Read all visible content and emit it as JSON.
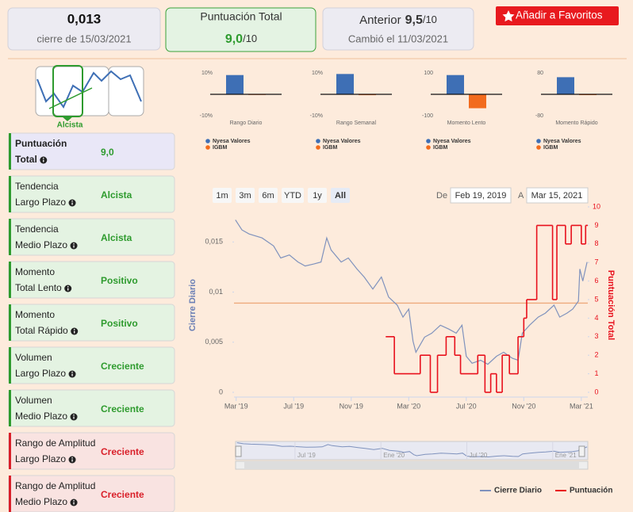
{
  "header": {
    "price": "0,013",
    "price_caption": "cierre de 15/03/2021",
    "score_title": "Puntuación Total",
    "score": "9,0",
    "score_scale": "/10",
    "previous_label": "Anterior",
    "previous_score": "9,5",
    "previous_scale": "/10",
    "previous_caption": "Cambió el 11/03/2021",
    "favorite_button": "Añadir a Favoritos"
  },
  "trend_icon": {
    "label": "Alcista"
  },
  "indicators": [
    {
      "label": [
        "Puntuación",
        "Total"
      ],
      "value": "9,0",
      "color": "#2e9b2e",
      "background": "#e9e7f7",
      "border": "#2e9b2e"
    },
    {
      "label": [
        "Tendencia",
        "Largo Plazo"
      ],
      "value": "Alcista",
      "color": "#2e9b2e",
      "background": "#e4f3e2",
      "border": "#2e9b2e"
    },
    {
      "label": [
        "Tendencia",
        "Medio Plazo"
      ],
      "value": "Alcista",
      "color": "#2e9b2e",
      "background": "#e4f3e2",
      "border": "#2e9b2e"
    },
    {
      "label": [
        "Momento",
        "Total Lento"
      ],
      "value": "Positivo",
      "color": "#2e9b2e",
      "background": "#e4f3e2",
      "border": "#2e9b2e"
    },
    {
      "label": [
        "Momento",
        "Total Rápido"
      ],
      "value": "Positivo",
      "color": "#2e9b2e",
      "background": "#e4f3e2",
      "border": "#2e9b2e"
    },
    {
      "label": [
        "Volumen",
        "Largo Plazo"
      ],
      "value": "Creciente",
      "color": "#2e9b2e",
      "background": "#e4f3e2",
      "border": "#2e9b2e"
    },
    {
      "label": [
        "Volumen",
        "Medio Plazo"
      ],
      "value": "Creciente",
      "color": "#2e9b2e",
      "background": "#e4f3e2",
      "border": "#2e9b2e"
    },
    {
      "label": [
        "Rango de Amplitud",
        "Largo Plazo"
      ],
      "value": "Creciente",
      "color": "#d9202a",
      "background": "#f9e3e1",
      "border": "#d9202a"
    },
    {
      "label": [
        "Rango de Amplitud",
        "Medio Plazo"
      ],
      "value": "Creciente",
      "color": "#d9202a",
      "background": "#f9e3e1",
      "border": "#d9202a"
    }
  ],
  "chart_data": [
    {
      "type": "bar",
      "categories": [
        "Rango Diario"
      ],
      "series": [
        {
          "name": "Nyesa Valores",
          "color": "#3e6fb5",
          "values": [
            9
          ]
        },
        {
          "name": "IGBM",
          "color": "#f26b1d",
          "values": [
            -0.3
          ]
        }
      ],
      "ylim": [
        -10,
        10
      ],
      "yticks": [
        {
          "value": -10,
          "label": "-10%"
        },
        {
          "value": 10,
          "label": "10%"
        }
      ]
    },
    {
      "type": "bar",
      "categories": [
        "Rango Semanal"
      ],
      "series": [
        {
          "name": "Nyesa Valores",
          "color": "#3e6fb5",
          "values": [
            9.5
          ]
        },
        {
          "name": "IGBM",
          "color": "#f26b1d",
          "values": [
            -0.4
          ]
        }
      ],
      "ylim": [
        -10,
        10
      ],
      "yticks": [
        {
          "value": -10,
          "label": "-10%"
        },
        {
          "value": 10,
          "label": "10%"
        }
      ]
    },
    {
      "type": "bar",
      "categories": [
        "Momento Lento"
      ],
      "series": [
        {
          "name": "Nyesa Valores",
          "color": "#3e6fb5",
          "values": [
            90
          ]
        },
        {
          "name": "IGBM",
          "color": "#f26b1d",
          "values": [
            -65
          ]
        }
      ],
      "ylim": [
        -100,
        100
      ],
      "yticks": [
        -100,
        100
      ]
    },
    {
      "type": "bar",
      "categories": [
        "Momento Rápido"
      ],
      "series": [
        {
          "name": "Nyesa Valores",
          "color": "#3e6fb5",
          "values": [
            64
          ]
        },
        {
          "name": "IGBM",
          "color": "#f26b1d",
          "values": [
            -3
          ]
        }
      ],
      "ylim": [
        -80,
        80
      ],
      "yticks": [
        -80,
        80
      ]
    },
    {
      "type": "line",
      "ylabel": "Cierre Diario",
      "y2label": "Puntuación Total",
      "xlim": [
        -0.15,
        24.45
      ],
      "xticks": [
        {
          "value": 0,
          "label": "Mar '19"
        },
        {
          "value": 4,
          "label": "Jul '19"
        },
        {
          "value": 8,
          "label": "Nov '19"
        },
        {
          "value": 12,
          "label": "Mar '20"
        },
        {
          "value": 16,
          "label": "Jul '20"
        },
        {
          "value": 20,
          "label": "Nov '20"
        },
        {
          "value": 24,
          "label": "Mar '21"
        }
      ],
      "ylim": [
        0,
        0.0185
      ],
      "yticks": [
        0,
        {
          "value": 0.005,
          "label": "0,005"
        },
        {
          "value": 0.01,
          "label": "0,01"
        },
        {
          "value": 0.015,
          "label": "0,015"
        }
      ],
      "y2lim": [
        0,
        10
      ],
      "y2ticks": [
        0,
        1,
        2,
        3,
        4,
        5,
        6,
        7,
        8,
        9,
        10
      ],
      "reference_line": {
        "value": 0.0089,
        "color": "#eeaa7c"
      },
      "legend_position": "bottom-right",
      "series": [
        {
          "name": "Cierre Diario",
          "color": "#7f92bd",
          "x": [
            -0.05,
            0.4,
            0.9,
            1.8,
            2.6,
            3.1,
            3.7,
            4.3,
            4.8,
            5.4,
            5.9,
            6.3,
            6.6,
            7.3,
            7.8,
            8.4,
            8.9,
            9.5,
            10.1,
            10.6,
            11.2,
            11.6,
            12.0,
            12.3,
            12.5,
            13.1,
            13.6,
            14.2,
            14.8,
            15.3,
            15.7,
            16.0,
            16.4,
            17.0,
            17.5,
            18.1,
            18.6,
            19.2,
            19.6,
            19.9,
            20.4,
            21.0,
            21.5,
            22.1,
            22.5,
            23.0,
            23.4,
            23.8,
            23.9,
            24.1,
            24.4
          ],
          "values": [
            0.0172,
            0.0162,
            0.0158,
            0.0154,
            0.0146,
            0.0134,
            0.0137,
            0.013,
            0.0126,
            0.0128,
            0.013,
            0.0154,
            0.0142,
            0.013,
            0.0134,
            0.0123,
            0.0115,
            0.0103,
            0.0115,
            0.0095,
            0.0087,
            0.0075,
            0.0083,
            0.0051,
            0.004,
            0.0055,
            0.0059,
            0.0067,
            0.0063,
            0.0059,
            0.0067,
            0.0036,
            0.0029,
            0.0032,
            0.0028,
            0.0036,
            0.004,
            0.0034,
            0.0032,
            0.0059,
            0.0067,
            0.0075,
            0.0079,
            0.0087,
            0.0075,
            0.0079,
            0.0083,
            0.0091,
            0.0123,
            0.0111,
            0.013
          ]
        },
        {
          "name": "Puntuación",
          "color": "#e8101c",
          "axis": "y2",
          "step": true,
          "x": [
            10.4,
            11.0,
            12.8,
            13.5,
            14.0,
            14.6,
            15.2,
            15.6,
            16.8,
            17.3,
            17.7,
            18.1,
            18.5,
            19.0,
            19.6,
            20.0,
            20.2,
            20.9,
            22.0,
            22.3,
            22.9,
            23.3,
            24.0,
            24.3
          ],
          "values": [
            3,
            1,
            2,
            0,
            2,
            3,
            2,
            1,
            2,
            0,
            1,
            0,
            2,
            1,
            3,
            4,
            5,
            9,
            5,
            9,
            8,
            9,
            8,
            9
          ]
        }
      ]
    }
  ],
  "range_selector": {
    "buttons": [
      "1m",
      "3m",
      "6m",
      "YTD",
      "1y",
      "All"
    ],
    "selected": 5,
    "from_label": "De",
    "from": "Feb 19, 2019",
    "to_label": "A",
    "to": "Mar 15, 2021"
  },
  "navigator": {
    "ticks": [
      {
        "value": 4,
        "label": "Jul '19"
      },
      {
        "value": 10,
        "label": "Ene '20"
      },
      {
        "value": 16,
        "label": "Jul '20"
      },
      {
        "value": 22,
        "label": "Ene '21"
      }
    ]
  }
}
